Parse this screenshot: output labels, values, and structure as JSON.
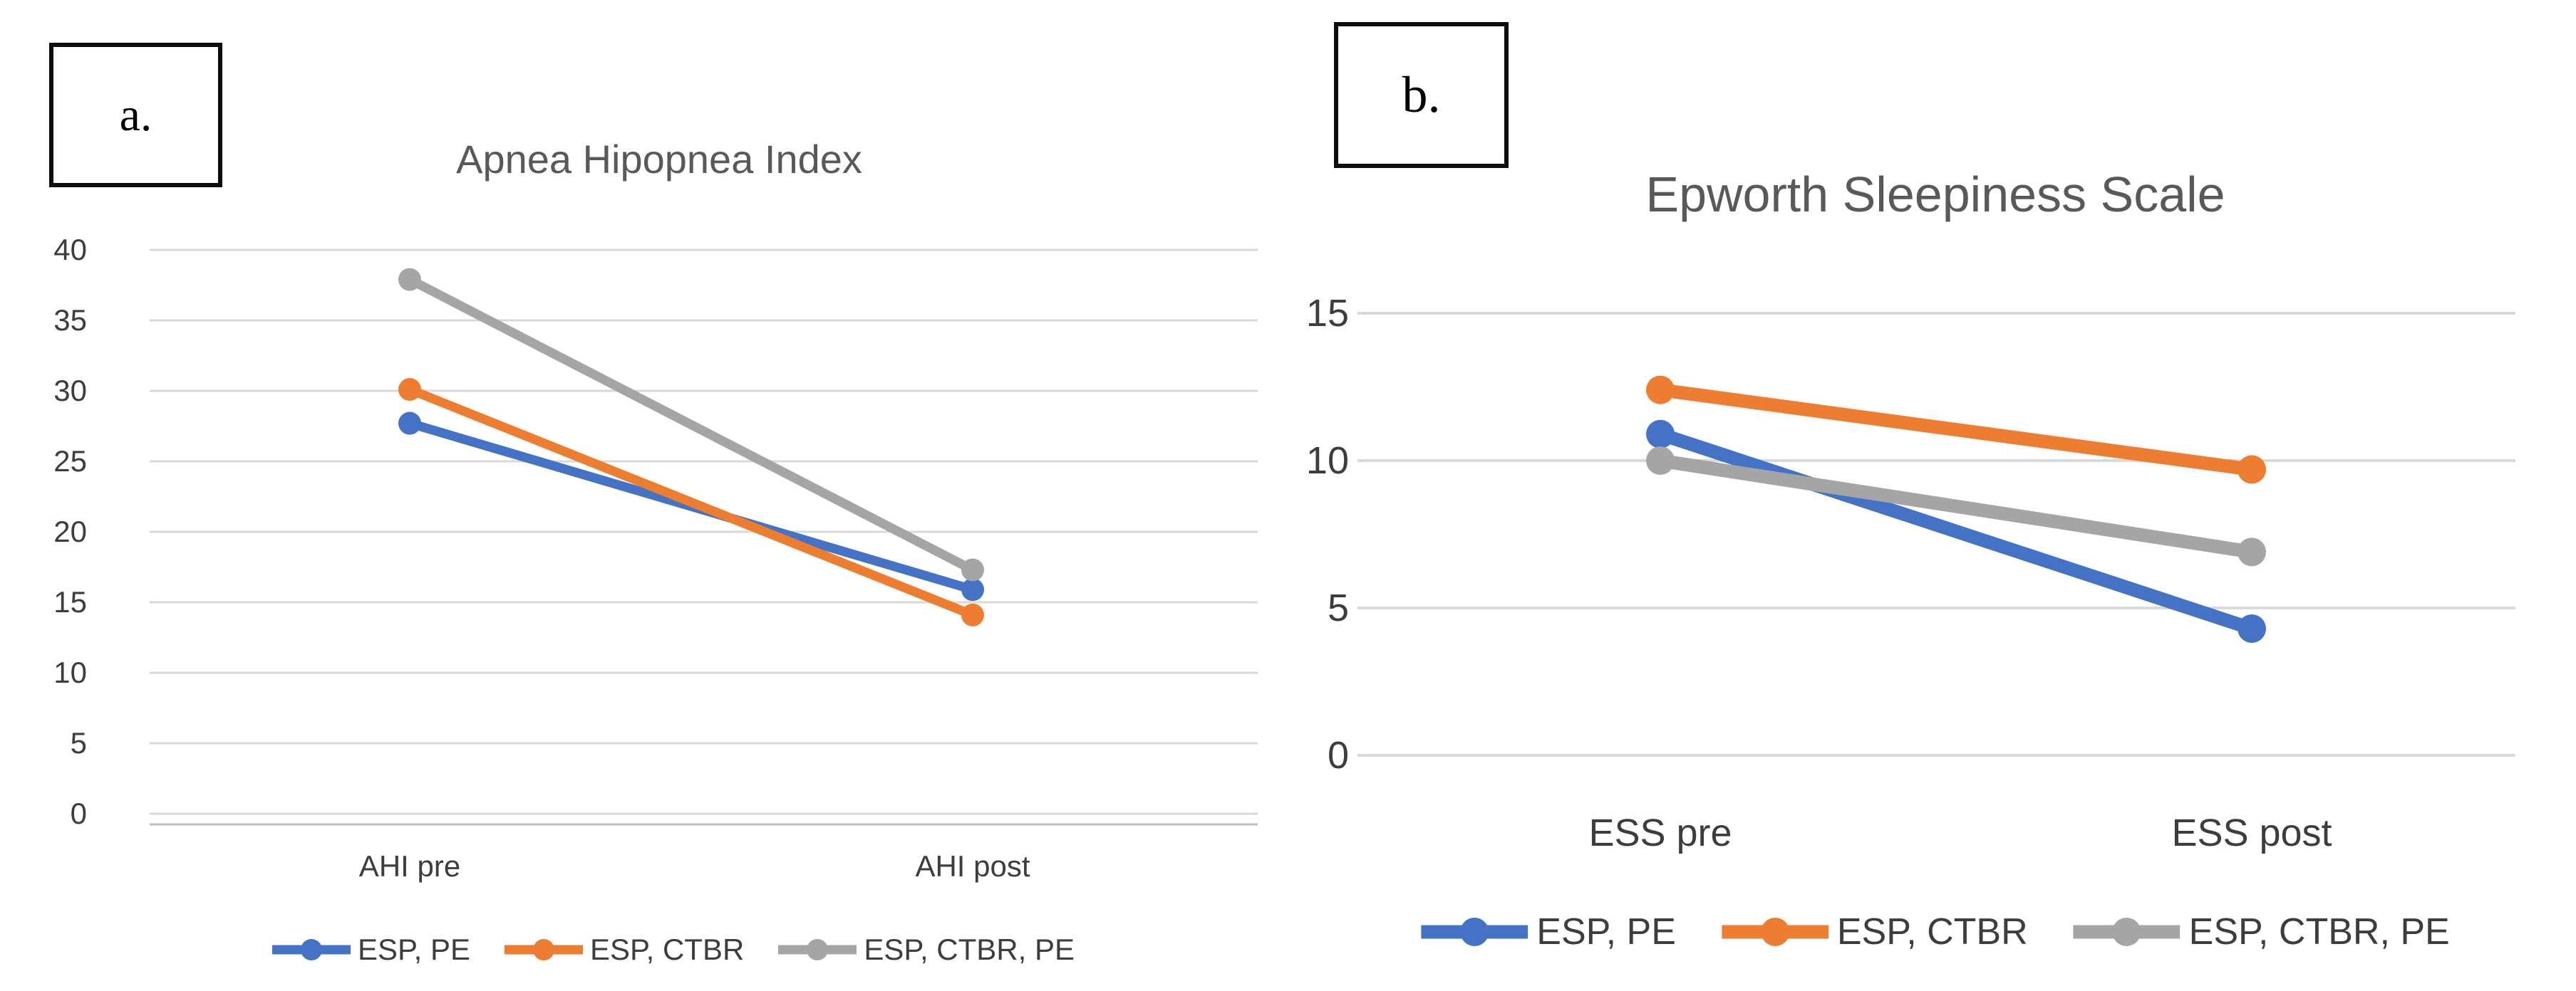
{
  "figure": {
    "background": "#ffffff",
    "grid_color": "#d9d9d9",
    "axis_line_color": "#bfbfbf",
    "title_color": "#595959",
    "tick_color": "#3d3d3d",
    "panel_labels": [
      "a.",
      "b."
    ]
  },
  "chart_data": [
    {
      "type": "line",
      "panel_label": "a.",
      "title": "Apnea Hipopnea Index",
      "categories": [
        "AHI pre",
        "AHI post"
      ],
      "series": [
        {
          "name": "ESP, PE",
          "color": "#4472C4",
          "values": [
            27.7,
            15.9
          ]
        },
        {
          "name": "ESP, CTBR",
          "color": "#ED7D31",
          "values": [
            30.1,
            14.1
          ]
        },
        {
          "name": "ESP, CTBR, PE",
          "color": "#A5A5A5",
          "values": [
            37.9,
            17.3
          ]
        }
      ],
      "xlabel": "",
      "ylabel": "",
      "ylim": [
        0,
        40
      ],
      "yticks": [
        0,
        5,
        10,
        15,
        20,
        25,
        30,
        35,
        40
      ],
      "grid": true,
      "legend_position": "bottom",
      "markers": "circle"
    },
    {
      "type": "line",
      "panel_label": "b.",
      "title": "Epworth Sleepiness Scale",
      "categories": [
        "ESS pre",
        "ESS post"
      ],
      "series": [
        {
          "name": "ESP, PE",
          "color": "#4472C4",
          "values": [
            10.9,
            4.3
          ]
        },
        {
          "name": "ESP, CTBR",
          "color": "#ED7D31",
          "values": [
            12.4,
            9.7
          ]
        },
        {
          "name": "ESP, CTBR, PE",
          "color": "#A5A5A5",
          "values": [
            10.0,
            6.9
          ]
        }
      ],
      "xlabel": "",
      "ylabel": "",
      "ylim": [
        0,
        15
      ],
      "yticks": [
        0,
        5,
        10,
        15
      ],
      "grid": true,
      "legend_position": "bottom",
      "markers": "circle"
    }
  ]
}
